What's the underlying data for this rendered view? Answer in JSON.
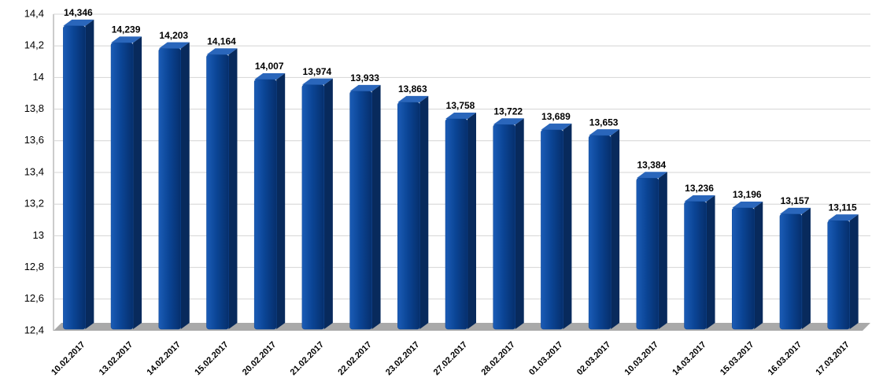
{
  "chart_data": {
    "type": "bar",
    "categories": [
      "10.02.2017",
      "13.02.2017",
      "14.02.2017",
      "15.02.2017",
      "20.02.2017",
      "21.02.2017",
      "22.02.2017",
      "23.02.2017",
      "27.02.2017",
      "28.02.2017",
      "01.03.2017",
      "02.03.2017",
      "10.03.2017",
      "14.03.2017",
      "15.03.2017",
      "16.03.2017",
      "17.03.2017"
    ],
    "values": [
      14.346,
      14.239,
      14.203,
      14.164,
      14.007,
      13.974,
      13.933,
      13.863,
      13.758,
      13.722,
      13.689,
      13.653,
      13.384,
      13.236,
      13.196,
      13.157,
      13.115
    ],
    "value_labels": [
      "14,346",
      "14,239",
      "14,203",
      "14,164",
      "14,007",
      "13,974",
      "13,933",
      "13,863",
      "13,758",
      "13,722",
      "13,689",
      "13,653",
      "13,384",
      "13,236",
      "13,196",
      "13,157",
      "13,115"
    ],
    "color": "#0b4596",
    "ylim": [
      12.4,
      14.4
    ],
    "yticks": [
      {
        "value": 12.4,
        "label": "12,4"
      },
      {
        "value": 12.6,
        "label": "12,6"
      },
      {
        "value": 12.8,
        "label": "12,8"
      },
      13,
      {
        "value": 13.2,
        "label": "13,2"
      },
      {
        "value": 13.4,
        "label": "13,4"
      },
      {
        "value": 13.6,
        "label": "13,6"
      },
      {
        "value": 13.8,
        "label": "13,8"
      },
      14,
      {
        "value": 14.2,
        "label": "14,2"
      },
      {
        "value": 14.4,
        "label": "14,4"
      }
    ],
    "grid": true
  }
}
